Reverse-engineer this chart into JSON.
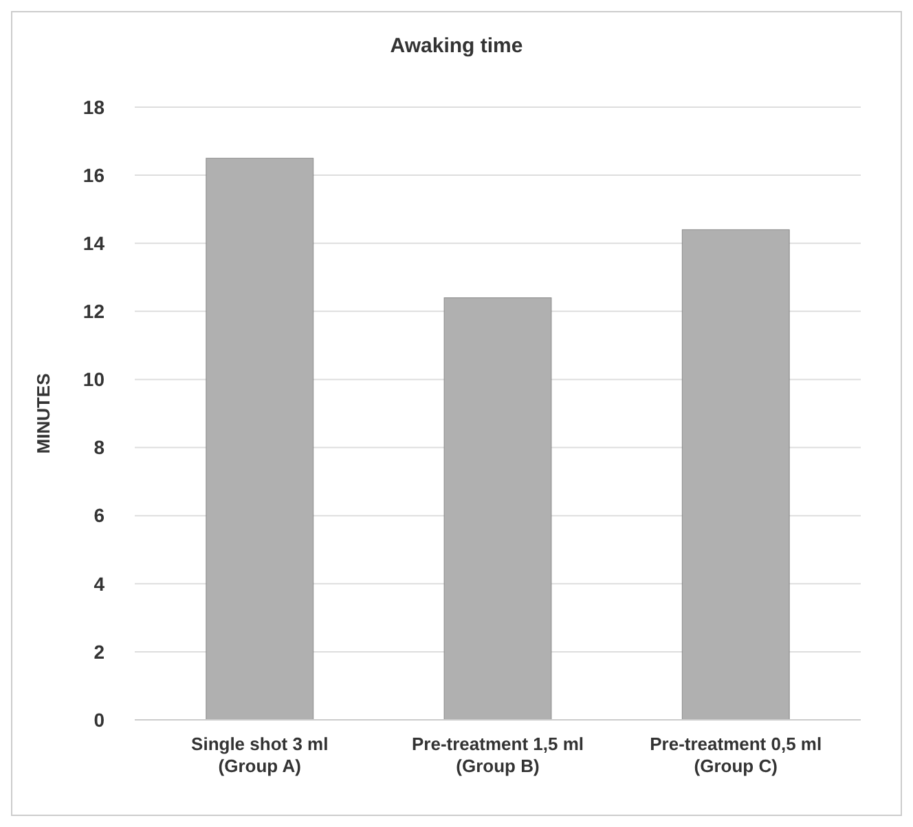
{
  "chart_data": {
    "type": "bar",
    "title": "Awaking time",
    "ylabel": "MINUTES",
    "categories": [
      "Single shot 3 ml (Group A)",
      "Pre-treatment 1,5 ml  (Group B)",
      "Pre-treatment 0,5 ml  (Group C)"
    ],
    "values": [
      16.5,
      12.4,
      14.4
    ],
    "color": "#b0b0b0",
    "ylim": [
      0,
      18
    ],
    "yticks": [
      0,
      2,
      4,
      6,
      8,
      10,
      12,
      14,
      16,
      18
    ],
    "grid": "y"
  }
}
